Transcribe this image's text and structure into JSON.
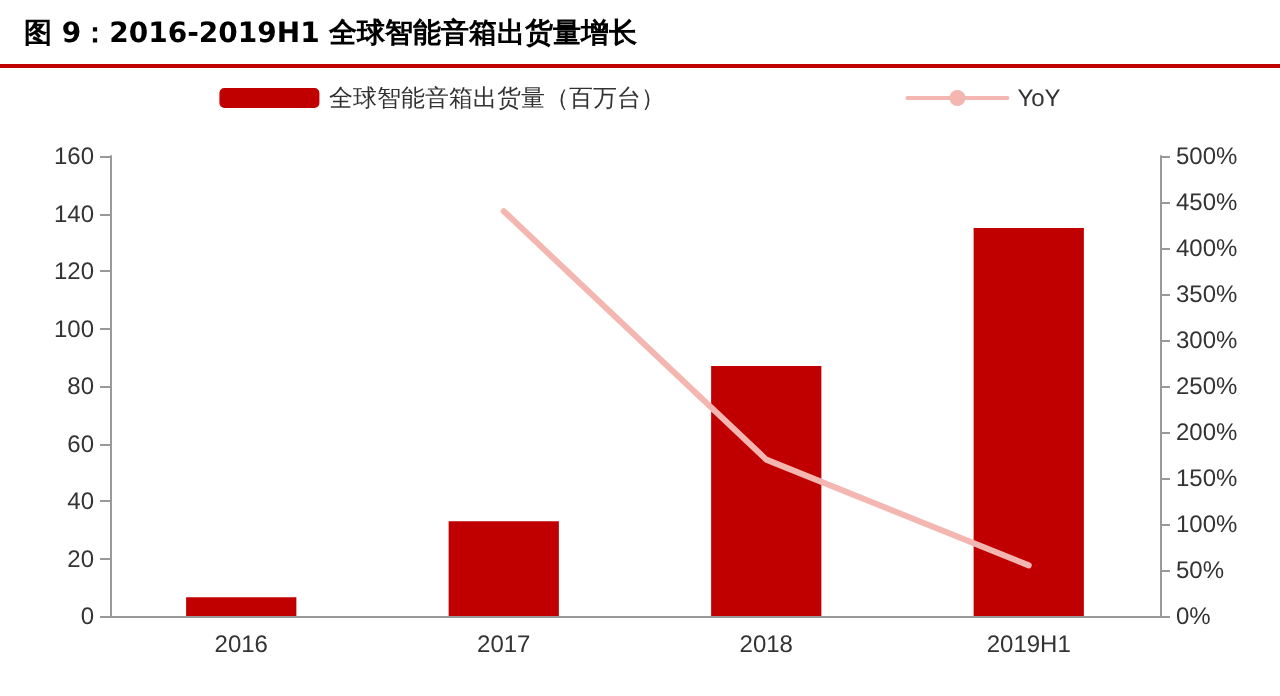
{
  "chart_data": {
    "type": "bar",
    "title": "图 9：2016-2019H1 全球智能音箱出货量增长",
    "categories": [
      "2016",
      "2017",
      "2018",
      "2019H1"
    ],
    "series": [
      {
        "name": "全球智能音箱出货量（百万台）",
        "color": "#c00000",
        "values": [
          6.5,
          33,
          87,
          135
        ]
      },
      {
        "name": "YoY",
        "type": "line",
        "axis": "y2",
        "color": "#f4b6b0",
        "values": [
          null,
          440,
          170,
          55
        ]
      }
    ],
    "ylim": [
      0,
      160
    ],
    "yticks": [
      0,
      20,
      40,
      60,
      80,
      100,
      120,
      140,
      160
    ],
    "y2lim": [
      0,
      500
    ],
    "y2ticks": [
      {
        "value": 0,
        "label": "0%"
      },
      {
        "value": 50,
        "label": "50%"
      },
      {
        "value": 100,
        "label": "100%"
      },
      {
        "value": 150,
        "label": "150%"
      },
      {
        "value": 200,
        "label": "200%"
      },
      {
        "value": 250,
        "label": "250%"
      },
      {
        "value": 300,
        "label": "300%"
      },
      {
        "value": 350,
        "label": "350%"
      },
      {
        "value": 400,
        "label": "400%"
      },
      {
        "value": 450,
        "label": "450%"
      },
      {
        "value": 500,
        "label": "500%"
      }
    ],
    "legend": "top",
    "grid": false,
    "marker": "none",
    "line_style": "solid"
  }
}
